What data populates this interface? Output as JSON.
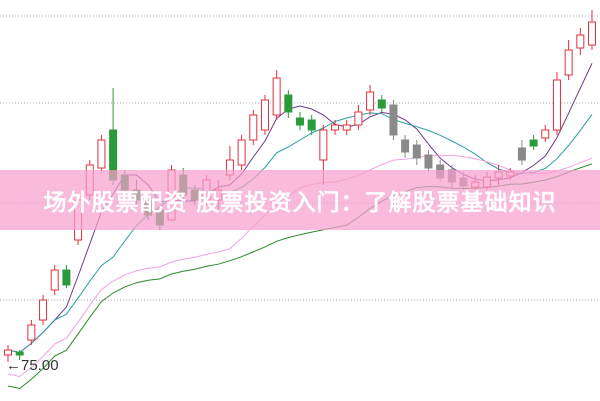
{
  "title": "场外股票配资 股票投资入门：了解股票基础知识",
  "chart_data": {
    "type": "candlestick",
    "title": "场外股票配资 股票投资入门：了解股票基础知识",
    "annotation": "75.00",
    "annotation_arrow": "←",
    "grid": "horizontal dotted",
    "colors": {
      "up": "#e0303a",
      "down": "#2a9a3a",
      "down_gray": "#8a8a8a",
      "ma5": "#6a3a8a",
      "ma10": "#2aa0a0",
      "ma20": "#f0a0e0",
      "ma30": "#2a8a2a"
    },
    "ylim": [
      73.5,
      93.5
    ],
    "candles": [
      [
        75.65,
        75.9,
        76.15,
        75.3
      ],
      [
        75.8,
        75.65,
        75.9,
        75.4
      ],
      [
        76.4,
        77.15,
        77.4,
        76.15
      ],
      [
        77.4,
        78.4,
        78.65,
        77.15
      ],
      [
        78.9,
        79.9,
        80.15,
        78.65
      ],
      [
        79.9,
        79.15,
        80.15,
        79.0
      ],
      [
        81.4,
        83.4,
        83.65,
        81.15
      ],
      [
        83.65,
        85.15,
        85.4,
        83.4
      ],
      [
        85.0,
        86.4,
        86.65,
        84.8
      ],
      [
        86.9,
        84.4,
        89.0,
        84.15
      ],
      [
        84.65,
        83.9,
        84.9,
        83.65
      ],
      [
        83.9,
        83.4,
        84.4,
        83.15
      ],
      [
        83.4,
        82.65,
        83.65,
        82.4
      ],
      [
        82.9,
        82.15,
        83.15,
        81.9
      ],
      [
        82.4,
        84.9,
        85.15,
        82.4
      ],
      [
        84.65,
        83.65,
        85.0,
        83.4
      ],
      [
        83.9,
        83.4,
        84.15,
        83.15
      ],
      [
        83.4,
        84.4,
        84.65,
        83.15
      ],
      [
        83.4,
        83.9,
        84.4,
        82.9
      ],
      [
        84.65,
        85.4,
        86.1,
        84.4
      ],
      [
        85.15,
        86.4,
        86.65,
        84.9
      ],
      [
        86.4,
        87.65,
        87.9,
        86.15
      ],
      [
        86.9,
        88.4,
        88.65,
        86.65
      ],
      [
        87.65,
        89.5,
        89.9,
        87.4
      ],
      [
        88.65,
        87.8,
        88.9,
        87.5
      ],
      [
        87.5,
        87.15,
        87.8,
        86.9
      ],
      [
        87.4,
        86.9,
        87.65,
        86.65
      ],
      [
        85.4,
        86.9,
        87.15,
        84.15
      ],
      [
        86.9,
        87.15,
        87.4,
        86.65
      ],
      [
        86.9,
        87.15,
        87.4,
        86.65
      ],
      [
        87.15,
        87.8,
        88.15,
        86.9
      ],
      [
        87.9,
        88.8,
        89.15,
        87.65
      ],
      [
        88.4,
        88.0,
        88.65,
        87.8
      ],
      [
        88.15,
        86.65,
        88.4,
        86.4
      ],
      [
        86.4,
        85.8,
        86.65,
        85.5
      ],
      [
        86.15,
        85.5,
        86.4,
        85.15
      ],
      [
        85.65,
        85.0,
        85.9,
        84.8
      ],
      [
        85.15,
        84.5,
        85.4,
        84.3
      ],
      [
        84.9,
        84.3,
        85.15,
        84.0
      ],
      [
        84.5,
        84.1,
        84.8,
        83.9
      ],
      [
        84.05,
        84.3,
        84.65,
        83.9
      ],
      [
        84.05,
        84.55,
        84.8,
        83.9
      ],
      [
        84.5,
        84.8,
        85.15,
        84.15
      ],
      [
        84.6,
        84.8,
        85.0,
        84.4
      ],
      [
        86.0,
        85.4,
        86.4,
        85.15
      ],
      [
        86.4,
        86.1,
        86.65,
        85.9
      ],
      [
        86.5,
        86.9,
        87.15,
        86.3
      ],
      [
        86.9,
        89.4,
        89.8,
        86.65
      ],
      [
        89.65,
        90.9,
        91.4,
        89.4
      ],
      [
        91.0,
        91.65,
        92.0,
        90.65
      ],
      [
        91.15,
        92.3,
        92.9,
        90.9
      ]
    ],
    "moving_averages": [
      5,
      10,
      20,
      30
    ]
  }
}
